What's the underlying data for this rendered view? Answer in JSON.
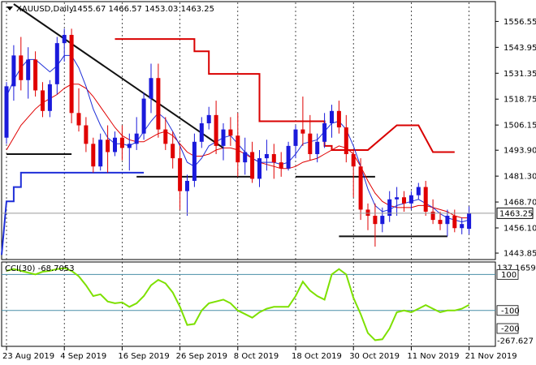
{
  "header": {
    "symbol": "XAUUSD,Daily",
    "ohlc": "1455.67 1466.57 1453.03 1463.25"
  },
  "colors": {
    "bull": "#1a1adb",
    "bear": "#e00000",
    "price_label_bg": "#ffffff",
    "cci_line": "#7de000",
    "trendline": "#111111",
    "support": "#111111",
    "upper_band": "#d90000",
    "lower_band": "#1f2fd8",
    "hline_cci": "#4a8fa8"
  },
  "chart_data": [
    {
      "type": "candlestick",
      "title": "XAUUSD,Daily",
      "ylim": [
        1441.5,
        1565.0
      ],
      "y_ticks": [
        "1556.55",
        "1543.95",
        "1531.35",
        "1518.75",
        "1506.15",
        "1493.90",
        "1481.30",
        "1468.70",
        "1456.10",
        "1443.85"
      ],
      "current_price": 1463.25,
      "current_price_label": "1463.25",
      "x_labels": [
        {
          "label": "23 Aug 2019",
          "index": 0
        },
        {
          "label": "4 Sep 2019",
          "index": 8
        },
        {
          "label": "16 Sep 2019",
          "index": 16
        },
        {
          "label": "26 Sep 2019",
          "index": 24
        },
        {
          "label": "8 Oct 2019",
          "index": 32
        },
        {
          "label": "18 Oct 2019",
          "index": 40
        },
        {
          "label": "30 Oct 2019",
          "index": 48
        },
        {
          "label": "11 Nov 2019",
          "index": 56
        },
        {
          "label": "21 Nov 2019",
          "index": 64
        }
      ],
      "candles": [
        [
          1500,
          1527,
          1497,
          1525
        ],
        [
          1525,
          1545,
          1518,
          1540
        ],
        [
          1540,
          1549,
          1523,
          1528
        ],
        [
          1528,
          1544,
          1519,
          1538
        ],
        [
          1538,
          1542,
          1520,
          1523
        ],
        [
          1523,
          1527,
          1510,
          1513
        ],
        [
          1513,
          1528,
          1510,
          1526
        ],
        [
          1526,
          1549,
          1521,
          1546
        ],
        [
          1546,
          1553,
          1537,
          1550
        ],
        [
          1550,
          1553,
          1507,
          1512
        ],
        [
          1512,
          1524,
          1503,
          1506
        ],
        [
          1506,
          1510,
          1493,
          1497
        ],
        [
          1497,
          1500,
          1483,
          1486
        ],
        [
          1486,
          1502,
          1484,
          1499
        ],
        [
          1499,
          1506,
          1483,
          1493
        ],
        [
          1493,
          1503,
          1491,
          1500
        ],
        [
          1500,
          1506,
          1489,
          1495
        ],
        [
          1495,
          1502,
          1484,
          1497
        ],
        [
          1497,
          1510,
          1494,
          1502
        ],
        [
          1502,
          1522,
          1499,
          1519
        ],
        [
          1519,
          1536,
          1512,
          1529
        ],
        [
          1529,
          1536,
          1500,
          1504
        ],
        [
          1504,
          1510,
          1494,
          1497
        ],
        [
          1497,
          1503,
          1485,
          1490
        ],
        [
          1490,
          1496,
          1465,
          1474
        ],
        [
          1474,
          1482,
          1462,
          1479
        ],
        [
          1479,
          1502,
          1476,
          1498
        ],
        [
          1498,
          1510,
          1495,
          1507
        ],
        [
          1507,
          1515,
          1504,
          1511
        ],
        [
          1511,
          1518,
          1492,
          1496
        ],
        [
          1496,
          1507,
          1489,
          1504
        ],
        [
          1504,
          1510,
          1496,
          1501
        ],
        [
          1501,
          1512,
          1481,
          1488
        ],
        [
          1488,
          1500,
          1482,
          1493
        ],
        [
          1493,
          1498,
          1478,
          1480
        ],
        [
          1480,
          1494,
          1476,
          1490
        ],
        [
          1490,
          1499,
          1484,
          1492
        ],
        [
          1492,
          1497,
          1480,
          1488
        ],
        [
          1488,
          1493,
          1481,
          1485
        ],
        [
          1485,
          1498,
          1484,
          1496
        ],
        [
          1496,
          1506,
          1490,
          1504
        ],
        [
          1504,
          1520,
          1496,
          1502
        ],
        [
          1502,
          1511,
          1489,
          1492
        ],
        [
          1492,
          1502,
          1488,
          1498
        ],
        [
          1498,
          1512,
          1495,
          1507
        ],
        [
          1507,
          1516,
          1500,
          1513
        ],
        [
          1513,
          1518,
          1502,
          1505
        ],
        [
          1505,
          1511,
          1488,
          1492
        ],
        [
          1492,
          1494,
          1471,
          1486
        ],
        [
          1486,
          1490,
          1460,
          1465
        ],
        [
          1465,
          1468,
          1455,
          1462
        ],
        [
          1462,
          1468,
          1447,
          1458
        ],
        [
          1458,
          1466,
          1454,
          1462
        ],
        [
          1462,
          1474,
          1459,
          1470
        ],
        [
          1470,
          1476,
          1462,
          1471
        ],
        [
          1471,
          1474,
          1464,
          1468
        ],
        [
          1468,
          1474,
          1465,
          1472
        ],
        [
          1472,
          1478,
          1470,
          1476
        ],
        [
          1476,
          1479,
          1462,
          1464
        ],
        [
          1464,
          1470,
          1458,
          1460
        ],
        [
          1460,
          1464,
          1455,
          1458
        ],
        [
          1458,
          1465,
          1452,
          1462
        ],
        [
          1462,
          1465,
          1454,
          1456
        ],
        [
          1456,
          1461,
          1453,
          1458
        ],
        [
          1455.67,
          1466.57,
          1453.03,
          1463.25
        ]
      ],
      "upper_band": [
        {
          "from": 15,
          "to": 26,
          "value": 1548
        },
        {
          "from": 26,
          "to": 28,
          "value": 1542
        },
        {
          "from": 28,
          "to": 32,
          "value": 1531
        },
        {
          "from": 32,
          "to": 35,
          "value": 1531
        },
        {
          "from": 35,
          "to": 39,
          "value": 1508
        },
        {
          "from": 39,
          "to": 44,
          "value": 1508
        },
        {
          "from": 44,
          "to": 45,
          "value": 1496
        },
        {
          "from": 45,
          "to": 50,
          "value": 1494
        }
      ],
      "lower_band": [
        {
          "from": 0,
          "to": 1,
          "value": 1469
        },
        {
          "from": 1,
          "to": 2,
          "value": 1476
        },
        {
          "from": 2,
          "to": 3,
          "value": 1483
        },
        {
          "from": 3,
          "to": 19,
          "value": 1483
        }
      ],
      "trendline": [
        [
          1,
          1565
        ],
        [
          30,
          1495
        ]
      ],
      "support_lines": [
        {
          "from": 0,
          "to": 9,
          "value": 1492
        },
        {
          "from": 18,
          "to": 34,
          "value": 1481
        },
        {
          "from": 40,
          "to": 51,
          "value": 1481
        },
        {
          "from": 46,
          "to": 61,
          "value": 1452
        }
      ],
      "ma_fast": [
        1520,
        1528,
        1534,
        1538,
        1538,
        1535,
        1532,
        1535,
        1540,
        1540,
        1534,
        1525,
        1514,
        1506,
        1500,
        1497,
        1497,
        1496,
        1498,
        1503,
        1508,
        1512,
        1509,
        1503,
        1496,
        1488,
        1486,
        1490,
        1496,
        1498,
        1500,
        1501,
        1497,
        1493,
        1490,
        1488,
        1488,
        1488,
        1487,
        1488,
        1492,
        1497,
        1498,
        1499,
        1503,
        1507,
        1508,
        1504,
        1496,
        1486,
        1475,
        1467,
        1464,
        1465,
        1467,
        1468,
        1469,
        1470,
        1468,
        1466,
        1463,
        1461,
        1460,
        1459,
        1460
      ],
      "ma_slow": [
        1494,
        1500,
        1506,
        1510,
        1514,
        1517,
        1519,
        1521,
        1524,
        1526,
        1526,
        1524,
        1520,
        1515,
        1510,
        1505,
        1501,
        1499,
        1498,
        1498,
        1500,
        1502,
        1503,
        1501,
        1497,
        1493,
        1491,
        1491,
        1492,
        1494,
        1495,
        1495,
        1494,
        1492,
        1490,
        1488,
        1487,
        1486,
        1485,
        1485,
        1486,
        1488,
        1489,
        1490,
        1492,
        1494,
        1496,
        1495,
        1492,
        1486,
        1479,
        1473,
        1469,
        1467,
        1466,
        1466,
        1466,
        1467,
        1467,
        1466,
        1465,
        1464,
        1462,
        1461,
        1461
      ]
    },
    {
      "type": "line",
      "title": "CCI(30) -68.7053",
      "ylim": [
        -290,
        160
      ],
      "y_ticks": [
        "137.1659",
        "100",
        "-100",
        "-200",
        "-267.627"
      ],
      "levels": [
        100,
        -100
      ],
      "series": [
        {
          "name": "CCI(30) -68.7053",
          "values": [
            120,
            130,
            120,
            110,
            100,
            115,
            120,
            130,
            135,
            120,
            90,
            40,
            -20,
            -10,
            -50,
            -60,
            -55,
            -80,
            -60,
            -20,
            40,
            70,
            50,
            0,
            -80,
            -180,
            -175,
            -100,
            -60,
            -50,
            -40,
            -60,
            -100,
            -120,
            -140,
            -110,
            -90,
            -80,
            -80,
            -80,
            -20,
            60,
            10,
            -20,
            -40,
            100,
            130,
            100,
            -30,
            -120,
            -225,
            -265,
            -260,
            -200,
            -110,
            -100,
            -110,
            -90,
            -70,
            -90,
            -110,
            -100,
            -100,
            -90,
            -69
          ]
        }
      ]
    }
  ]
}
